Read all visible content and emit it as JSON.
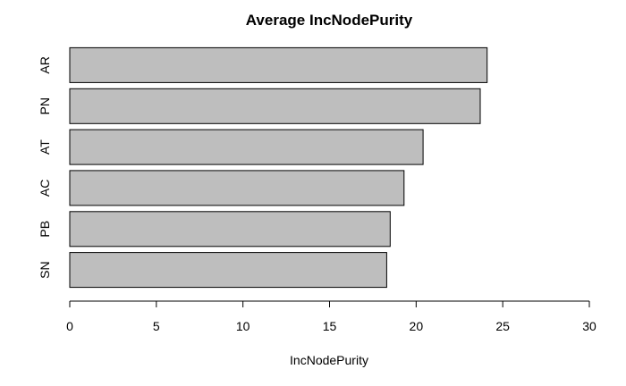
{
  "chart_data": {
    "type": "bar",
    "orientation": "horizontal",
    "title": "Average IncNodePurity",
    "xlabel": "IncNodePurity",
    "ylabel": "",
    "categories": [
      "AR",
      "PN",
      "AT",
      "AC",
      "PB",
      "SN"
    ],
    "values": [
      24.1,
      23.7,
      20.4,
      19.3,
      18.5,
      18.3
    ],
    "xlim": [
      0,
      30
    ],
    "x_ticks": [
      0,
      5,
      10,
      15,
      20,
      25,
      30
    ],
    "bar_color": "#bebebe",
    "bar_border_color": "#000000",
    "grid": false,
    "legend": "none"
  }
}
